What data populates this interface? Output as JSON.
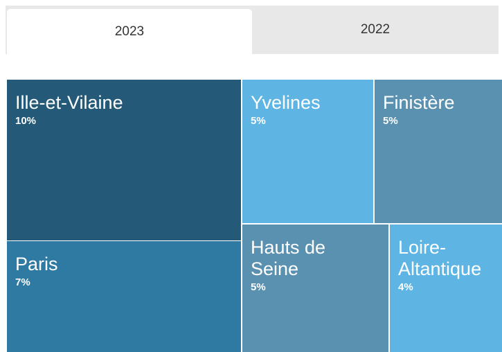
{
  "chart_data": {
    "type": "treemap",
    "tabs": [
      "2023",
      "2022"
    ],
    "categories": [
      "Ille-et-Vilaine",
      "Paris",
      "Yvelines",
      "Finistère",
      "Hauts de Seine",
      "Loire-Altantique"
    ],
    "values": [
      10,
      7,
      5,
      5,
      5,
      4
    ],
    "value_labels": [
      "10%",
      "7%",
      "5%",
      "5%",
      "5%",
      "4%"
    ],
    "colors": [
      "#245a78",
      "#2e7aa3",
      "#5eb5e3",
      "#5a90b0",
      "#5a90b0",
      "#5eb5e3"
    ]
  }
}
